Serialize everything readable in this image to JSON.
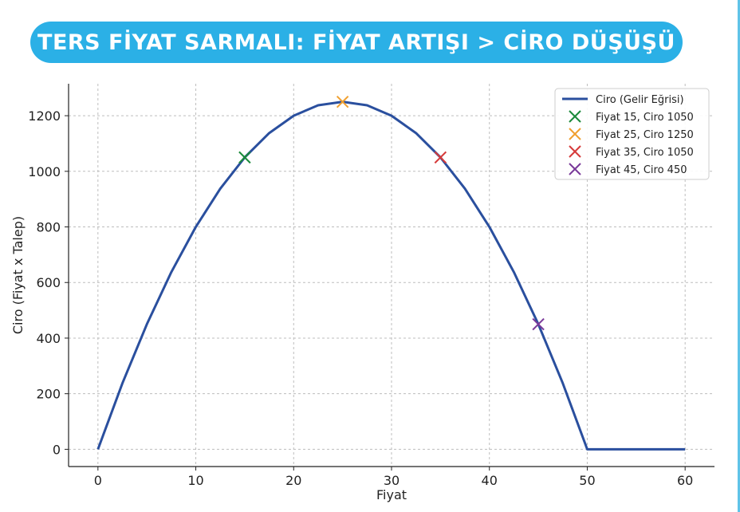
{
  "banner": {
    "title": "TERS FİYAT SARMALI: FİYAT ARTIŞI > CİRO DÜŞÜŞÜ",
    "background": "#2bb0e6",
    "text_color": "#ffffff"
  },
  "chart_data": {
    "type": "line",
    "title": "",
    "xlabel": "Fiyat",
    "ylabel": "Ciro (Fiyat x Talep)",
    "xlim": [
      -3,
      63
    ],
    "ylim": [
      -62,
      1315
    ],
    "xticks": [
      0,
      10,
      20,
      30,
      40,
      50,
      60
    ],
    "yticks": [
      0,
      200,
      400,
      600,
      800,
      1000,
      1200
    ],
    "grid": true,
    "legend_position": "top-right",
    "series": [
      {
        "name": "Ciro (Gelir Eğrisi)",
        "kind": "line",
        "color": "#2a4f9e",
        "x": [
          0,
          2.5,
          5,
          7.5,
          10,
          12.5,
          15,
          17.5,
          20,
          22.5,
          25,
          27.5,
          30,
          32.5,
          35,
          37.5,
          40,
          42.5,
          45,
          47.5,
          50,
          52.5,
          55,
          57.5,
          60
        ],
        "y": [
          0,
          237.5,
          450,
          637.5,
          800,
          937.5,
          1050,
          1137.5,
          1200,
          1237.5,
          1250,
          1237.5,
          1200,
          1137.5,
          1050,
          937.5,
          800,
          637.5,
          450,
          237.5,
          0,
          0,
          0,
          0,
          0
        ]
      }
    ],
    "points": [
      {
        "name": "Fiyat 15, Ciro 1050",
        "x": 15,
        "y": 1050,
        "color": "#1a8a3a",
        "marker": "x"
      },
      {
        "name": "Fiyat 25, Ciro 1250",
        "x": 25,
        "y": 1250,
        "color": "#f0a030",
        "marker": "x"
      },
      {
        "name": "Fiyat 35, Ciro 1050",
        "x": 35,
        "y": 1050,
        "color": "#d63a3a",
        "marker": "x"
      },
      {
        "name": "Fiyat 45, Ciro 450",
        "x": 45,
        "y": 450,
        "color": "#7a3a9a",
        "marker": "x"
      }
    ]
  }
}
